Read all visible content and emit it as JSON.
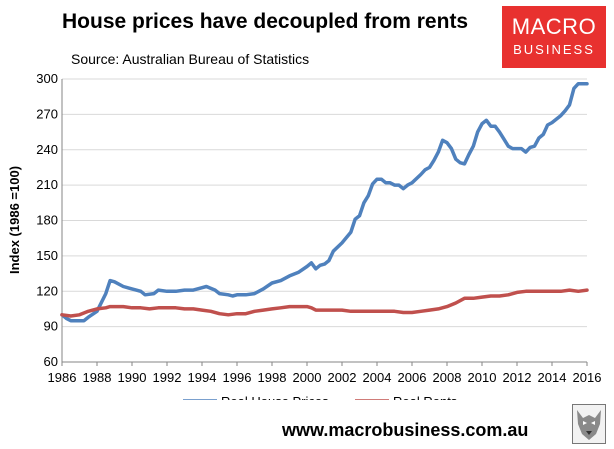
{
  "header": {
    "title": "House prices have decoupled from rents",
    "subtitle": "Source: Australian Bureau of Statistics"
  },
  "logo": {
    "line1": "MACRO",
    "line2": "BUSINESS",
    "color": "#e8312f"
  },
  "footer": {
    "website": "www.macrobusiness.com.au"
  },
  "chart_data": {
    "type": "line",
    "title": "House prices have decoupled from rents",
    "subtitle": "Source: Australian Bureau of Statistics",
    "xlabel": "",
    "ylabel": "Index (1986 =100)",
    "xlim": [
      1986,
      2016
    ],
    "ylim": [
      60,
      300
    ],
    "xticks": [
      1986,
      1988,
      1990,
      1992,
      1994,
      1996,
      1998,
      2000,
      2002,
      2004,
      2006,
      2008,
      2010,
      2012,
      2014,
      2016
    ],
    "yticks": [
      60,
      90,
      120,
      150,
      180,
      210,
      240,
      270,
      300
    ],
    "grid": "horizontal",
    "legend_position": "bottom",
    "series": [
      {
        "name": "Real House Prices",
        "color": "#4f81bd",
        "points": [
          [
            1986.0,
            100
          ],
          [
            1986.25,
            97
          ],
          [
            1986.5,
            95
          ],
          [
            1987.0,
            95
          ],
          [
            1987.25,
            95
          ],
          [
            1987.5,
            98
          ],
          [
            1988.0,
            103
          ],
          [
            1988.5,
            118
          ],
          [
            1988.75,
            129
          ],
          [
            1989.0,
            128
          ],
          [
            1989.5,
            124
          ],
          [
            1990.0,
            122
          ],
          [
            1990.5,
            120
          ],
          [
            1990.75,
            117
          ],
          [
            1991.25,
            118
          ],
          [
            1991.5,
            121
          ],
          [
            1992.0,
            120
          ],
          [
            1992.5,
            120
          ],
          [
            1993.0,
            121
          ],
          [
            1993.5,
            121
          ],
          [
            1994.0,
            123
          ],
          [
            1994.25,
            124
          ],
          [
            1994.75,
            121
          ],
          [
            1995.0,
            118
          ],
          [
            1995.5,
            117
          ],
          [
            1995.75,
            116
          ],
          [
            1996.0,
            117
          ],
          [
            1996.5,
            117
          ],
          [
            1997.0,
            118
          ],
          [
            1997.5,
            122
          ],
          [
            1998.0,
            127
          ],
          [
            1998.5,
            129
          ],
          [
            1999.0,
            133
          ],
          [
            1999.5,
            136
          ],
          [
            2000.0,
            141
          ],
          [
            2000.25,
            144
          ],
          [
            2000.5,
            139
          ],
          [
            2000.75,
            142
          ],
          [
            2001.0,
            143
          ],
          [
            2001.25,
            146
          ],
          [
            2001.5,
            154
          ],
          [
            2002.0,
            161
          ],
          [
            2002.5,
            170
          ],
          [
            2002.75,
            181
          ],
          [
            2003.0,
            184
          ],
          [
            2003.25,
            195
          ],
          [
            2003.5,
            201
          ],
          [
            2003.75,
            211
          ],
          [
            2004.0,
            215
          ],
          [
            2004.25,
            215
          ],
          [
            2004.5,
            212
          ],
          [
            2004.75,
            212
          ],
          [
            2005.0,
            210
          ],
          [
            2005.25,
            210
          ],
          [
            2005.5,
            207
          ],
          [
            2005.75,
            210
          ],
          [
            2006.0,
            212
          ],
          [
            2006.5,
            219
          ],
          [
            2006.75,
            223
          ],
          [
            2007.0,
            225
          ],
          [
            2007.25,
            231
          ],
          [
            2007.5,
            238
          ],
          [
            2007.75,
            248
          ],
          [
            2008.0,
            246
          ],
          [
            2008.25,
            241
          ],
          [
            2008.5,
            232
          ],
          [
            2008.75,
            229
          ],
          [
            2009.0,
            228
          ],
          [
            2009.25,
            236
          ],
          [
            2009.5,
            243
          ],
          [
            2009.75,
            255
          ],
          [
            2010.0,
            262
          ],
          [
            2010.25,
            265
          ],
          [
            2010.5,
            260
          ],
          [
            2010.75,
            260
          ],
          [
            2011.0,
            255
          ],
          [
            2011.25,
            249
          ],
          [
            2011.5,
            243
          ],
          [
            2011.75,
            241
          ],
          [
            2012.0,
            241
          ],
          [
            2012.25,
            241
          ],
          [
            2012.5,
            238
          ],
          [
            2012.75,
            242
          ],
          [
            2013.0,
            243
          ],
          [
            2013.25,
            250
          ],
          [
            2013.5,
            253
          ],
          [
            2013.75,
            261
          ],
          [
            2014.0,
            263
          ],
          [
            2014.25,
            266
          ],
          [
            2014.5,
            269
          ],
          [
            2014.75,
            273
          ],
          [
            2015.0,
            278
          ],
          [
            2015.25,
            292
          ],
          [
            2015.5,
            296
          ],
          [
            2015.75,
            296
          ],
          [
            2016.0,
            296
          ]
        ]
      },
      {
        "name": "Real Rents",
        "color": "#c0504d",
        "points": [
          [
            1986.0,
            100
          ],
          [
            1986.5,
            99
          ],
          [
            1987.0,
            100
          ],
          [
            1987.5,
            103
          ],
          [
            1988.0,
            105
          ],
          [
            1988.5,
            106
          ],
          [
            1988.75,
            107
          ],
          [
            1989.0,
            107
          ],
          [
            1989.5,
            107
          ],
          [
            1990.0,
            106
          ],
          [
            1990.5,
            106
          ],
          [
            1991.0,
            105
          ],
          [
            1991.5,
            106
          ],
          [
            1992.0,
            106
          ],
          [
            1992.5,
            106
          ],
          [
            1993.0,
            105
          ],
          [
            1993.5,
            105
          ],
          [
            1994.0,
            104
          ],
          [
            1994.5,
            103
          ],
          [
            1995.0,
            101
          ],
          [
            1995.5,
            100
          ],
          [
            1996.0,
            101
          ],
          [
            1996.5,
            101
          ],
          [
            1997.0,
            103
          ],
          [
            1997.5,
            104
          ],
          [
            1998.0,
            105
          ],
          [
            1998.5,
            106
          ],
          [
            1999.0,
            107
          ],
          [
            1999.5,
            107
          ],
          [
            2000.0,
            107
          ],
          [
            2000.25,
            106
          ],
          [
            2000.5,
            104
          ],
          [
            2001.0,
            104
          ],
          [
            2001.5,
            104
          ],
          [
            2002.0,
            104
          ],
          [
            2002.5,
            103
          ],
          [
            2003.0,
            103
          ],
          [
            2003.5,
            103
          ],
          [
            2004.0,
            103
          ],
          [
            2004.5,
            103
          ],
          [
            2005.0,
            103
          ],
          [
            2005.5,
            102
          ],
          [
            2006.0,
            102
          ],
          [
            2006.5,
            103
          ],
          [
            2007.0,
            104
          ],
          [
            2007.5,
            105
          ],
          [
            2008.0,
            107
          ],
          [
            2008.5,
            110
          ],
          [
            2009.0,
            114
          ],
          [
            2009.5,
            114
          ],
          [
            2010.0,
            115
          ],
          [
            2010.5,
            116
          ],
          [
            2011.0,
            116
          ],
          [
            2011.5,
            117
          ],
          [
            2012.0,
            119
          ],
          [
            2012.5,
            120
          ],
          [
            2013.0,
            120
          ],
          [
            2013.5,
            120
          ],
          [
            2014.0,
            120
          ],
          [
            2014.5,
            120
          ],
          [
            2015.0,
            121
          ],
          [
            2015.5,
            120
          ],
          [
            2016.0,
            121
          ]
        ]
      }
    ]
  }
}
